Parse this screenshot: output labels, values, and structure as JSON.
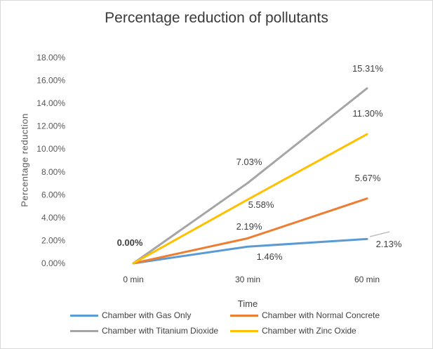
{
  "chart_data": {
    "type": "line",
    "title": "Percentage reduction of pollutants",
    "xlabel": "Time",
    "ylabel": "Percentage reduction",
    "categories": [
      "0 min",
      "30 min",
      "60 min"
    ],
    "yticks": [
      "0.00%",
      "2.00%",
      "4.00%",
      "6.00%",
      "8.00%",
      "10.00%",
      "12.00%",
      "14.00%",
      "16.00%",
      "18.00%"
    ],
    "ylim": [
      0,
      18
    ],
    "grid": false,
    "legend_position": "bottom",
    "series": [
      {
        "name": "Chamber with Gas Only",
        "color": "#5b9bd5",
        "values": [
          0.0,
          1.46,
          2.13
        ],
        "labels": [
          "",
          "1.46%",
          "2.13%"
        ]
      },
      {
        "name": "Chamber with Normal Concrete",
        "color": "#ed7d31",
        "values": [
          0.0,
          2.19,
          5.67
        ],
        "labels": [
          "",
          "2.19%",
          "5.67%"
        ]
      },
      {
        "name": "Chamber with Titanium Dioxide",
        "color": "#a5a5a5",
        "values": [
          0.0,
          7.03,
          15.31
        ],
        "labels": [
          "0.00%",
          "7.03%",
          "15.31%"
        ]
      },
      {
        "name": "Chamber with Zinc Oxide",
        "color": "#ffc000",
        "values": [
          0.0,
          5.58,
          11.3
        ],
        "labels": [
          "",
          "5.58%",
          "11.30%"
        ]
      }
    ]
  }
}
